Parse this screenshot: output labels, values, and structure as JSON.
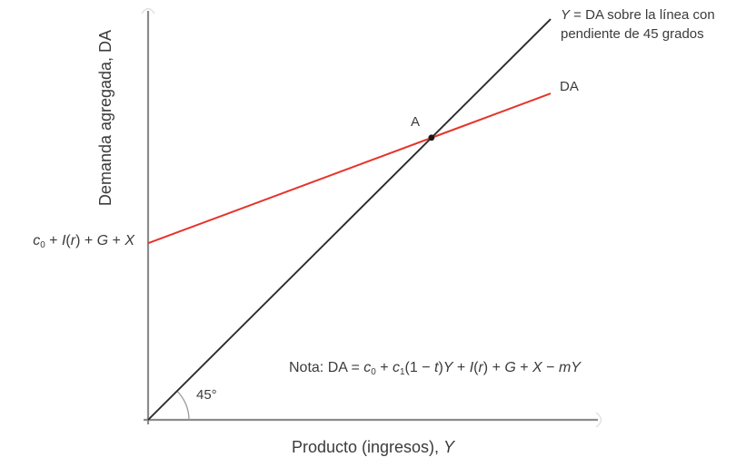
{
  "figure": {
    "y_axis_label": "Demanda agregada, DA",
    "x_axis_label_parts": [
      {
        "t": "Producto (ingresos), "
      },
      {
        "t": "Y",
        "i": 1
      }
    ],
    "line45_label_line1_parts": [
      {
        "t": "Y",
        "i": 1
      },
      {
        "t": " = DA sobre la línea con"
      }
    ],
    "line45_label_line2": "pendiente de 45 grados",
    "da_label": "DA",
    "point_a_label": "A",
    "angle_label": "45°",
    "intercept_label_parts": [
      {
        "t": "c",
        "i": 1
      },
      {
        "t": "0",
        "s": 1
      },
      {
        "t": " + "
      },
      {
        "t": "I",
        "i": 1
      },
      {
        "t": "("
      },
      {
        "t": "r",
        "i": 1
      },
      {
        "t": ") + "
      },
      {
        "t": "G",
        "i": 1
      },
      {
        "t": " + "
      },
      {
        "t": "X",
        "i": 1
      }
    ],
    "note_parts": [
      {
        "t": "Nota: DA = "
      },
      {
        "t": "c",
        "i": 1
      },
      {
        "t": "0",
        "s": 1
      },
      {
        "t": " + "
      },
      {
        "t": "c",
        "i": 1
      },
      {
        "t": "1",
        "s": 1
      },
      {
        "t": "(1 − "
      },
      {
        "t": "t",
        "i": 1
      },
      {
        "t": ")"
      },
      {
        "t": "Y",
        "i": 1
      },
      {
        "t": " + "
      },
      {
        "t": "I",
        "i": 1
      },
      {
        "t": "("
      },
      {
        "t": "r",
        "i": 1
      },
      {
        "t": ") + "
      },
      {
        "t": "G",
        "i": 1
      },
      {
        "t": " + "
      },
      {
        "t": "X",
        "i": 1
      },
      {
        "t": " − "
      },
      {
        "t": "m",
        "i": 1
      },
      {
        "t": "Y",
        "i": 1
      }
    ]
  },
  "colors": {
    "axis": "#8b8b8b",
    "axis_arrow": "#dedede",
    "arc": "#9a9a9a",
    "line45": "#2b2b2b",
    "da_line": "#e5342b",
    "point": "#1a1a1a",
    "text": "#3b3b3b"
  },
  "chart_data": {
    "type": "line",
    "title": "",
    "xlabel": "Producto (ingresos), Y",
    "ylabel": "Demanda agregada, DA",
    "axes_numeric": false,
    "grid": false,
    "legend_position": "inline-right-of-lines",
    "series": [
      {
        "name": "Y = DA sobre la línea con pendiente de 45 grados",
        "color": "#2b2b2b",
        "slope_description": "recta de 45 grados que pasa por el origen (pendiente 1)",
        "points_frac": [
          [
            0.0,
            0.0
          ],
          [
            0.895,
            0.98
          ]
        ]
      },
      {
        "name": "DA",
        "color": "#e5342b",
        "equation": "DA = c0 + c1(1 − t)Y + I(r) + G + X − mY",
        "intercept_label": "c0 + I(r) + G + X",
        "intercept_frac": 0.432,
        "points_frac": [
          [
            0.0,
            0.432
          ],
          [
            0.895,
            0.798
          ]
        ]
      }
    ],
    "annotations": [
      {
        "label": "A",
        "type": "point",
        "frac": [
          0.63,
          0.69
        ],
        "description": "intersección de la curva DA con la línea de 45 grados"
      },
      {
        "label": "45°",
        "type": "angle",
        "at": "origin"
      }
    ],
    "note": "Nota: DA = c0 + c1(1 − t)Y + I(r) + G + X − mY"
  }
}
